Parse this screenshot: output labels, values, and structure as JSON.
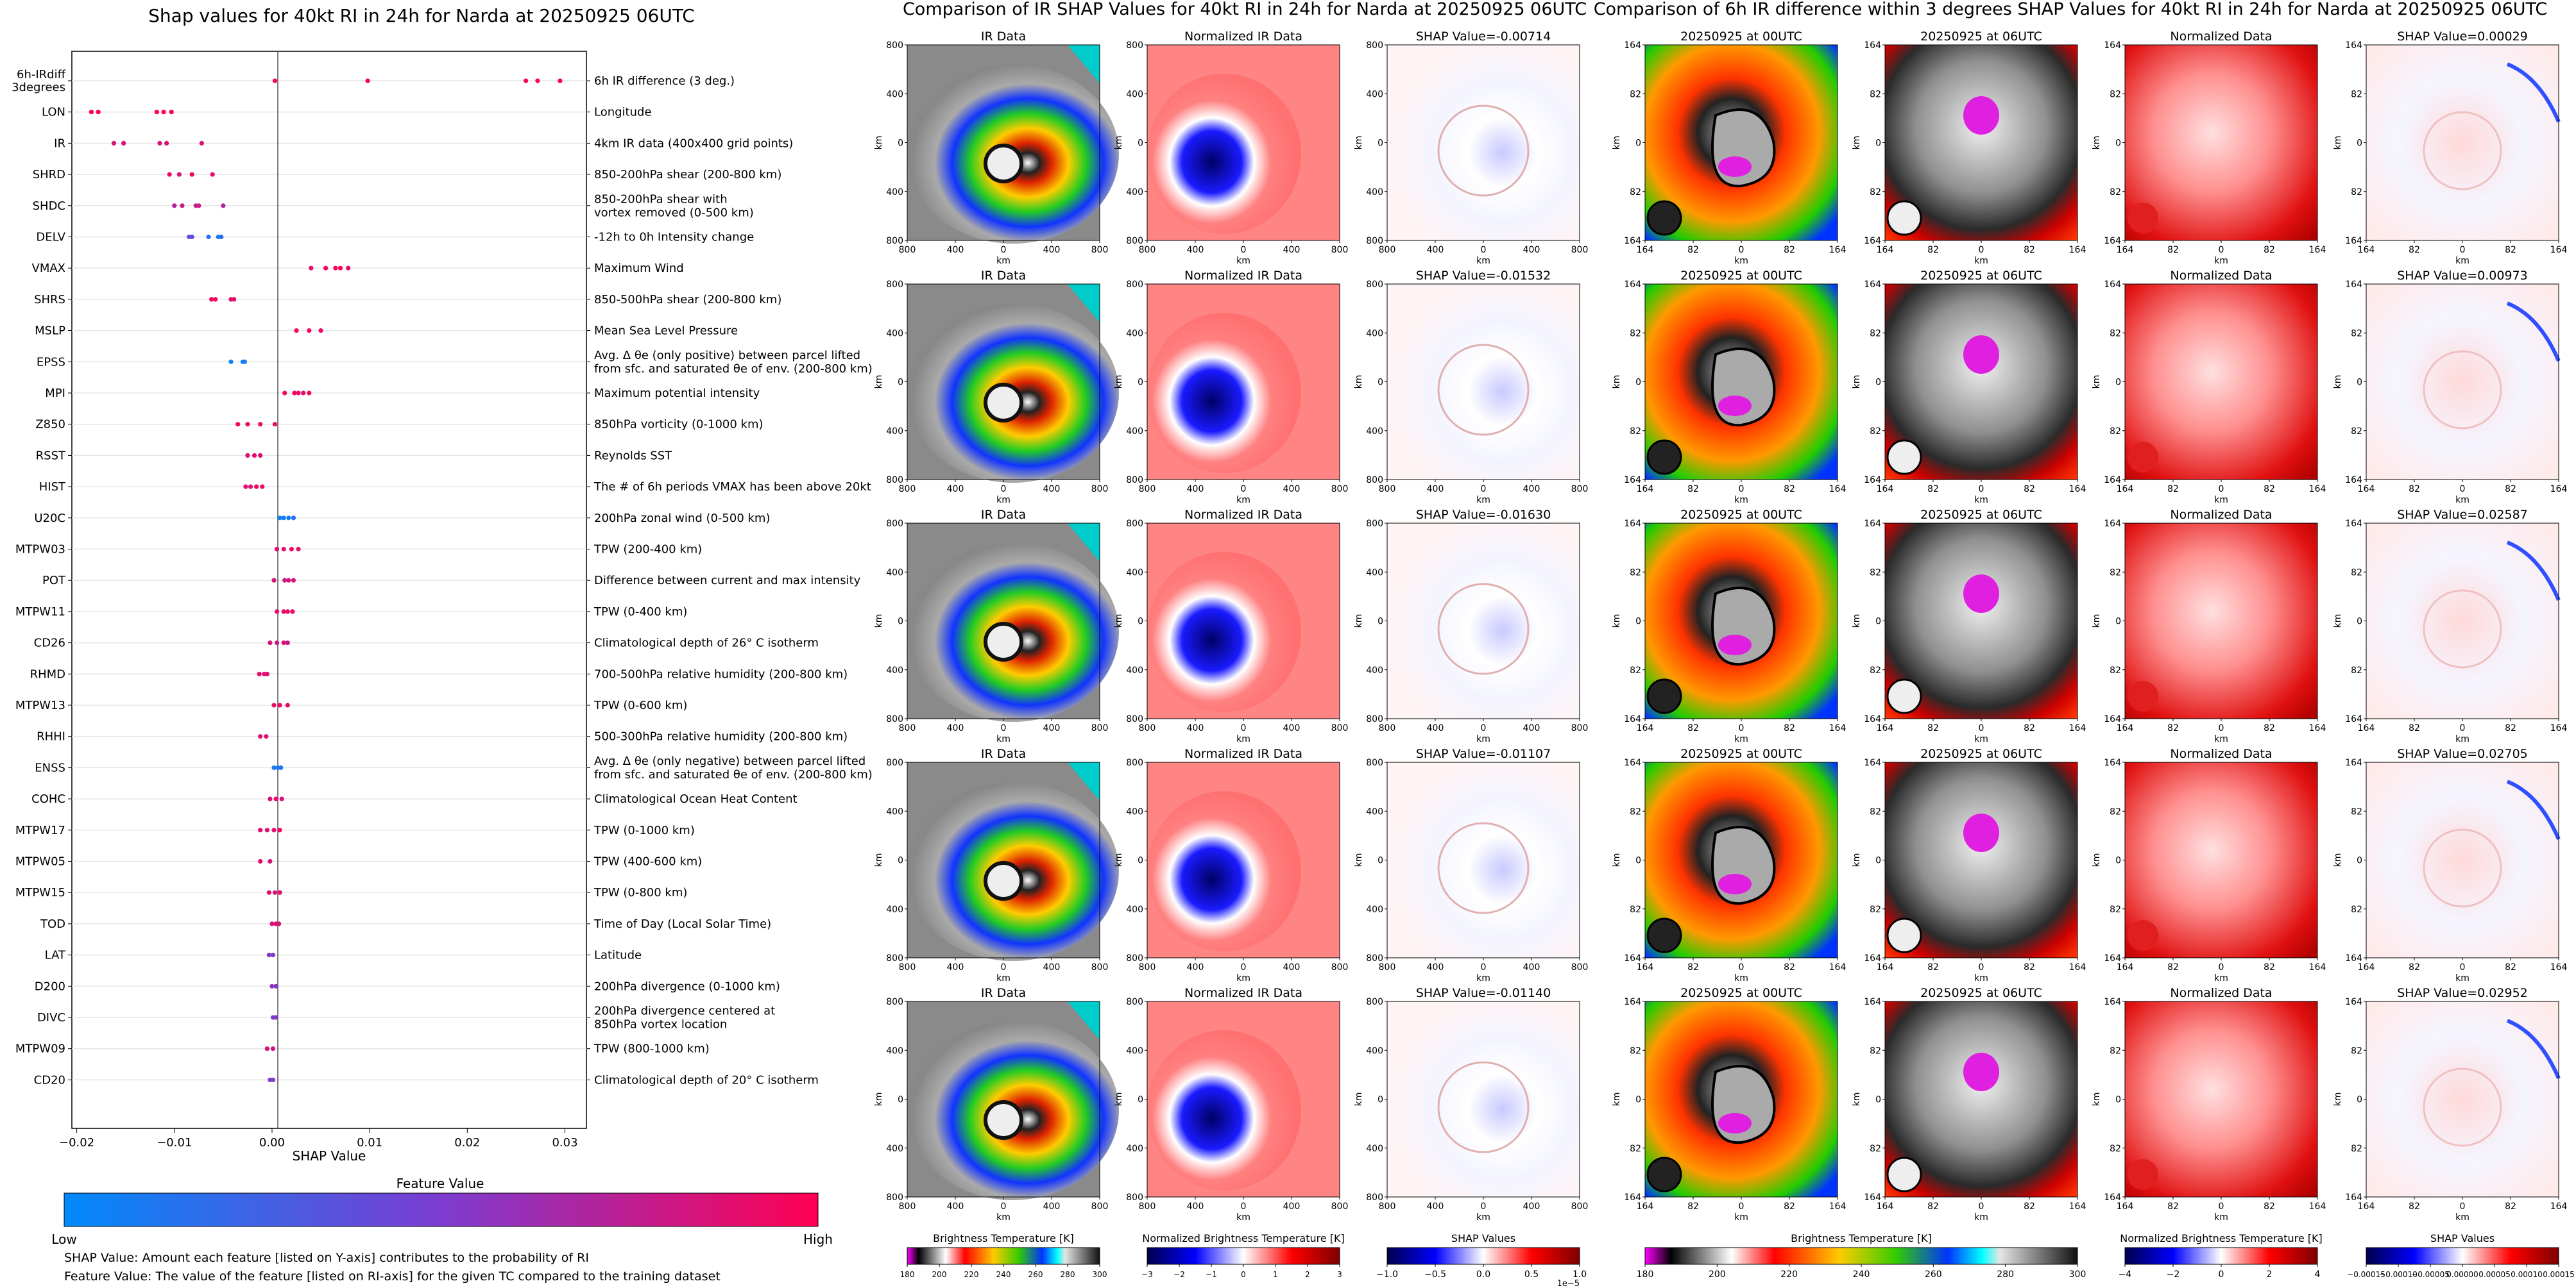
{
  "shap_summary": {
    "title": "Shap values for 40kt RI in 24h for Narda at 20250925 06UTC",
    "xlabel": "SHAP Value",
    "xticks": [
      "−0.02",
      "−0.01",
      "0.00",
      "0.01",
      "0.02",
      "0.03"
    ],
    "colorbar_title": "Feature Value",
    "colorbar_low": "Low",
    "colorbar_high": "High",
    "note1": "SHAP Value: Amount each feature [listed on Y-axis] contributes to the probability of RI",
    "note2": "Feature Value: The value of the feature [listed on RI-axis] for the given TC compared to the training dataset",
    "features": [
      {
        "code": "6h-IRdiff\n3degrees",
        "desc": "6h IR difference (3 deg.)"
      },
      {
        "code": "LON",
        "desc": "Longitude"
      },
      {
        "code": "IR",
        "desc": "4km IR data (400x400 grid points)"
      },
      {
        "code": "SHRD",
        "desc": "850-200hPa shear (200-800 km)"
      },
      {
        "code": "SHDC",
        "desc": "850-200hPa shear with\nvortex removed (0-500 km)"
      },
      {
        "code": "DELV",
        "desc": "-12h to 0h Intensity change"
      },
      {
        "code": "VMAX",
        "desc": "Maximum Wind"
      },
      {
        "code": "SHRS",
        "desc": "850-500hPa shear (200-800 km)"
      },
      {
        "code": "MSLP",
        "desc": "Mean Sea Level Pressure"
      },
      {
        "code": "EPSS",
        "desc": "Avg. Δ θe (only positive) between parcel lifted\nfrom sfc. and saturated θe of env. (200-800 km)"
      },
      {
        "code": "MPI",
        "desc": "Maximum potential intensity"
      },
      {
        "code": "Z850",
        "desc": "850hPa vorticity (0-1000 km)"
      },
      {
        "code": "RSST",
        "desc": "Reynolds SST"
      },
      {
        "code": "HIST",
        "desc": "The # of 6h periods VMAX has been above 20kt"
      },
      {
        "code": "U20C",
        "desc": "200hPa zonal wind (0-500 km)"
      },
      {
        "code": "MTPW03",
        "desc": "TPW (200-400 km)"
      },
      {
        "code": "POT",
        "desc": "Difference between current and max intensity"
      },
      {
        "code": "MTPW11",
        "desc": "TPW (0-400 km)"
      },
      {
        "code": "CD26",
        "desc": "Climatological depth of 26° C isotherm"
      },
      {
        "code": "RHMD",
        "desc": "700-500hPa relative humidity (200-800 km)"
      },
      {
        "code": "MTPW13",
        "desc": "TPW (0-600 km)"
      },
      {
        "code": "RHHI",
        "desc": "500-300hPa relative humidity (200-800 km)"
      },
      {
        "code": "ENSS",
        "desc": "Avg. Δ θe (only negative) between parcel lifted\nfrom sfc. and saturated θe of env. (200-800 km)"
      },
      {
        "code": "COHC",
        "desc": "Climatological Ocean Heat Content"
      },
      {
        "code": "MTPW17",
        "desc": "TPW (0-1000 km)"
      },
      {
        "code": "MTPW05",
        "desc": "TPW (400-600 km)"
      },
      {
        "code": "MTPW15",
        "desc": "TPW (0-800 km)"
      },
      {
        "code": "TOD",
        "desc": "Time of Day (Local Solar Time)"
      },
      {
        "code": "LAT",
        "desc": "Latitude"
      },
      {
        "code": "D200",
        "desc": "200hPa divergence (0-1000 km)"
      },
      {
        "code": "DIVC",
        "desc": "200hPa divergence centered at\n850hPa vortex location"
      },
      {
        "code": "MTPW09",
        "desc": "TPW (800-1000 km)"
      },
      {
        "code": "CD20",
        "desc": "Climatological depth of 20° C isotherm"
      }
    ]
  },
  "chart_data": {
    "type": "scatter",
    "title": "Shap values for 40kt RI in 24h for Narda at 20250925 06UTC",
    "xlabel": "SHAP Value",
    "xlim": [
      -0.0205,
      0.0322
    ],
    "color_low": "#008afb",
    "color_high": "#ff0052",
    "series": [
      {
        "feature": "6h-IRdiff",
        "points": [
          [
            0.0003,
            1
          ],
          [
            0.0098,
            1
          ],
          [
            0.026,
            1
          ],
          [
            0.0272,
            1
          ],
          [
            0.0295,
            1
          ]
        ]
      },
      {
        "feature": "LON",
        "points": [
          [
            -0.0185,
            1
          ],
          [
            -0.0178,
            1
          ],
          [
            -0.0118,
            1
          ],
          [
            -0.0111,
            1
          ],
          [
            -0.0103,
            1
          ]
        ]
      },
      {
        "feature": "IR",
        "points": [
          [
            -0.0162,
            0.85
          ],
          [
            -0.0152,
            0.85
          ],
          [
            -0.0115,
            0.85
          ],
          [
            -0.0108,
            0.85
          ],
          [
            -0.0072,
            0.85
          ]
        ]
      },
      {
        "feature": "SHRD",
        "points": [
          [
            -0.0105,
            0.9
          ],
          [
            -0.0095,
            0.85
          ],
          [
            -0.0082,
            0.95
          ],
          [
            -0.0061,
            0.9
          ]
        ]
      },
      {
        "feature": "SHDC",
        "points": [
          [
            -0.01,
            0.7
          ],
          [
            -0.0092,
            0.8
          ],
          [
            -0.0078,
            0.75
          ],
          [
            -0.0075,
            0.8
          ],
          [
            -0.005,
            0.7
          ]
        ]
      },
      {
        "feature": "DELV",
        "points": [
          [
            -0.0085,
            0.4
          ],
          [
            -0.0082,
            0.4
          ],
          [
            -0.0065,
            0.15
          ],
          [
            -0.0055,
            0.1
          ],
          [
            -0.0052,
            0.2
          ]
        ]
      },
      {
        "feature": "VMAX",
        "points": [
          [
            0.004,
            0.9
          ],
          [
            0.0055,
            0.95
          ],
          [
            0.0065,
            0.95
          ],
          [
            0.007,
            1
          ],
          [
            0.0078,
            0.9
          ]
        ]
      },
      {
        "feature": "SHRS",
        "points": [
          [
            -0.0062,
            0.95
          ],
          [
            -0.0058,
            0.95
          ],
          [
            -0.0042,
            0.9
          ],
          [
            -0.0039,
            0.9
          ]
        ]
      },
      {
        "feature": "MSLP",
        "points": [
          [
            0.0025,
            0.95
          ],
          [
            0.0038,
            0.95
          ],
          [
            0.005,
            0.9
          ]
        ]
      },
      {
        "feature": "EPSS",
        "points": [
          [
            -0.0042,
            0.05
          ],
          [
            -0.003,
            0.05
          ],
          [
            -0.0028,
            0.1
          ]
        ]
      },
      {
        "feature": "MPI",
        "points": [
          [
            0.0013,
            0.95
          ],
          [
            0.0023,
            0.95
          ],
          [
            0.0027,
            0.9
          ],
          [
            0.0032,
            0.9
          ],
          [
            0.0038,
            0.95
          ]
        ]
      },
      {
        "feature": "Z850",
        "points": [
          [
            -0.0035,
            0.95
          ],
          [
            -0.0025,
            0.9
          ],
          [
            -0.0012,
            0.9
          ],
          [
            0.0003,
            0.95
          ]
        ]
      },
      {
        "feature": "RSST",
        "points": [
          [
            -0.0025,
            0.85
          ],
          [
            -0.0018,
            0.9
          ],
          [
            -0.0012,
            0.85
          ]
        ]
      },
      {
        "feature": "HIST",
        "points": [
          [
            -0.0027,
            0.9
          ],
          [
            -0.0022,
            0.85
          ],
          [
            -0.0016,
            0.95
          ],
          [
            -0.001,
            0.9
          ]
        ]
      },
      {
        "feature": "U20C",
        "points": [
          [
            0.0008,
            0.05
          ],
          [
            0.0012,
            0.1
          ],
          [
            0.0017,
            0.1
          ],
          [
            0.0022,
            0.15
          ]
        ]
      },
      {
        "feature": "MTPW03",
        "points": [
          [
            0.0005,
            0.9
          ],
          [
            0.0012,
            0.85
          ],
          [
            0.002,
            0.95
          ],
          [
            0.0027,
            0.9
          ]
        ]
      },
      {
        "feature": "POT",
        "points": [
          [
            0.0002,
            0.85
          ],
          [
            0.0013,
            0.8
          ],
          [
            0.0017,
            0.85
          ],
          [
            0.0022,
            0.85
          ]
        ]
      },
      {
        "feature": "MTPW11",
        "points": [
          [
            0.0005,
            0.9
          ],
          [
            0.0012,
            0.95
          ],
          [
            0.0016,
            0.9
          ],
          [
            0.0021,
            0.95
          ]
        ]
      },
      {
        "feature": "CD26",
        "points": [
          [
            -0.0002,
            0.85
          ],
          [
            0.0005,
            0.8
          ],
          [
            0.0012,
            0.85
          ],
          [
            0.0016,
            0.8
          ]
        ]
      },
      {
        "feature": "RHMD",
        "points": [
          [
            -0.0013,
            0.9
          ],
          [
            -0.0008,
            0.9
          ],
          [
            -0.0005,
            0.85
          ]
        ]
      },
      {
        "feature": "MTPW13",
        "points": [
          [
            0.0002,
            0.9
          ],
          [
            0.0008,
            0.95
          ],
          [
            0.0016,
            0.9
          ]
        ]
      },
      {
        "feature": "RHHI",
        "points": [
          [
            -0.0012,
            0.85
          ],
          [
            -0.0006,
            0.9
          ]
        ]
      },
      {
        "feature": "ENSS",
        "points": [
          [
            0.0002,
            0.1
          ],
          [
            0.0006,
            0.15
          ],
          [
            0.0009,
            0.1
          ]
        ]
      },
      {
        "feature": "COHC",
        "points": [
          [
            -0.0002,
            0.85
          ],
          [
            0.0004,
            0.9
          ],
          [
            0.001,
            0.85
          ]
        ]
      },
      {
        "feature": "MTPW17",
        "points": [
          [
            -0.0012,
            0.9
          ],
          [
            -0.0005,
            0.85
          ],
          [
            0.0002,
            0.9
          ],
          [
            0.0008,
            0.95
          ]
        ]
      },
      {
        "feature": "MTPW05",
        "points": [
          [
            -0.0012,
            0.9
          ],
          [
            -0.0002,
            0.85
          ]
        ]
      },
      {
        "feature": "MTPW15",
        "points": [
          [
            -0.0003,
            0.9
          ],
          [
            0.0003,
            0.85
          ],
          [
            0.0008,
            0.9
          ]
        ]
      },
      {
        "feature": "TOD",
        "points": [
          [
            0,
            0.85
          ],
          [
            0.0004,
            0.9
          ],
          [
            0.0007,
            0.85
          ]
        ]
      },
      {
        "feature": "LAT",
        "points": [
          [
            -0.0003,
            0.55
          ],
          [
            0.0001,
            0.5
          ]
        ]
      },
      {
        "feature": "D200",
        "points": [
          [
            0,
            0.6
          ],
          [
            0.0004,
            0.55
          ]
        ]
      },
      {
        "feature": "DIVC",
        "points": [
          [
            0.0001,
            0.5
          ],
          [
            0.0004,
            0.55
          ]
        ]
      },
      {
        "feature": "MTPW09",
        "points": [
          [
            -0.0005,
            0.85
          ],
          [
            0.0001,
            0.8
          ]
        ]
      },
      {
        "feature": "CD20",
        "points": [
          [
            -0.0002,
            0.5
          ],
          [
            0.0001,
            0.5
          ]
        ]
      }
    ]
  },
  "ir_block": {
    "suptitle": "Comparison of IR SHAP Values for 40kt RI in 24h for Narda at 20250925 06UTC",
    "col_titles": [
      "IR Data",
      "Normalized IR Data"
    ],
    "shap_titles": [
      "SHAP Value=-0.00714",
      "SHAP Value=-0.01532",
      "SHAP Value=-0.01630",
      "SHAP Value=-0.01107",
      "SHAP Value=-0.01140"
    ],
    "axis_ticks": [
      "800",
      "400",
      "0",
      "400",
      "800"
    ],
    "axis_label": "km",
    "cb_ir_label": "Brightness Temperature [K]",
    "cb_ir_ticks": [
      "180",
      "200",
      "220",
      "240",
      "260",
      "280",
      "300"
    ],
    "cb_norm_label": "Normalized Brightness Temperature [K]",
    "cb_norm_ticks": [
      "−3",
      "−2",
      "−1",
      "0",
      "1",
      "2",
      "3"
    ],
    "cb_shap_label": "SHAP Values",
    "cb_shap_ticks": [
      "−1.0",
      "−0.5",
      "0.0",
      "0.5",
      "1.0"
    ],
    "cb_shap_exp": "1e−5"
  },
  "diff_block": {
    "suptitle": "Comparison of 6h IR difference within 3 degrees SHAP Values for 40kt RI in 24h for Narda at 20250925 06UTC",
    "col_titles": [
      "20250925 at 00UTC",
      "20250925 at 06UTC",
      "Normalized Data"
    ],
    "shap_titles": [
      "SHAP Value=0.00029",
      "SHAP Value=0.00973",
      "SHAP Value=0.02587",
      "SHAP Value=0.02705",
      "SHAP Value=0.02952"
    ],
    "axis_ticks": [
      "164",
      "82",
      "0",
      "82",
      "164"
    ],
    "axis_label": "km",
    "cb_ir_label": "Brightness Temperature [K]",
    "cb_ir_ticks": [
      "180",
      "200",
      "220",
      "240",
      "260",
      "280",
      "300"
    ],
    "cb_norm_label": "Normalized Brightness Temperature [K]",
    "cb_norm_ticks": [
      "−4",
      "−2",
      "0",
      "2",
      "4"
    ],
    "cb_shap_label": "SHAP Values",
    "cb_shap_ticks": [
      "−0.00015",
      "−0.00010",
      "−0.00005",
      "0.00000",
      "0.00005",
      "0.00010",
      "0.00015"
    ]
  }
}
